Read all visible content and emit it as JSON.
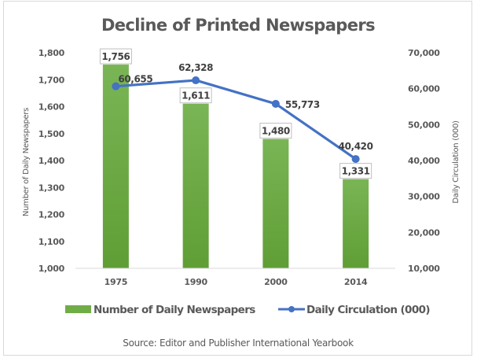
{
  "chart_data": {
    "type": "bar",
    "title": "Decline of Printed Newspapers",
    "categories": [
      "1975",
      "1990",
      "2000",
      "2014"
    ],
    "series": [
      {
        "name": "Number of Daily Newspapers",
        "type": "bar",
        "axis": "left",
        "color": "#70ad47",
        "values": [
          1756,
          1611,
          1480,
          1331
        ],
        "labels": [
          "1,756",
          "1,611",
          "1,480",
          "1,331"
        ]
      },
      {
        "name": "Daily Circulation (000)",
        "type": "line",
        "axis": "right",
        "color": "#4472c4",
        "values": [
          60655,
          62328,
          55773,
          40420
        ],
        "labels": [
          "60,655",
          "62,328",
          "55,773",
          "40,420"
        ]
      }
    ],
    "ylabel": "Number of Daily Newspapers",
    "ylim": [
      1000,
      1800
    ],
    "yticks": [
      "1,000",
      "1,100",
      "1,200",
      "1,300",
      "1,400",
      "1,500",
      "1,600",
      "1,700",
      "1,800"
    ],
    "y2label": "Daily Circulation (000)",
    "y2lim": [
      10000,
      70000
    ],
    "y2ticks": [
      "10,000",
      "20,000",
      "30,000",
      "40,000",
      "50,000",
      "60,000",
      "70,000"
    ],
    "xlabel": "",
    "grid": false,
    "legend": "bottom",
    "source": "Source: Editor and Publisher International Yearbook"
  }
}
